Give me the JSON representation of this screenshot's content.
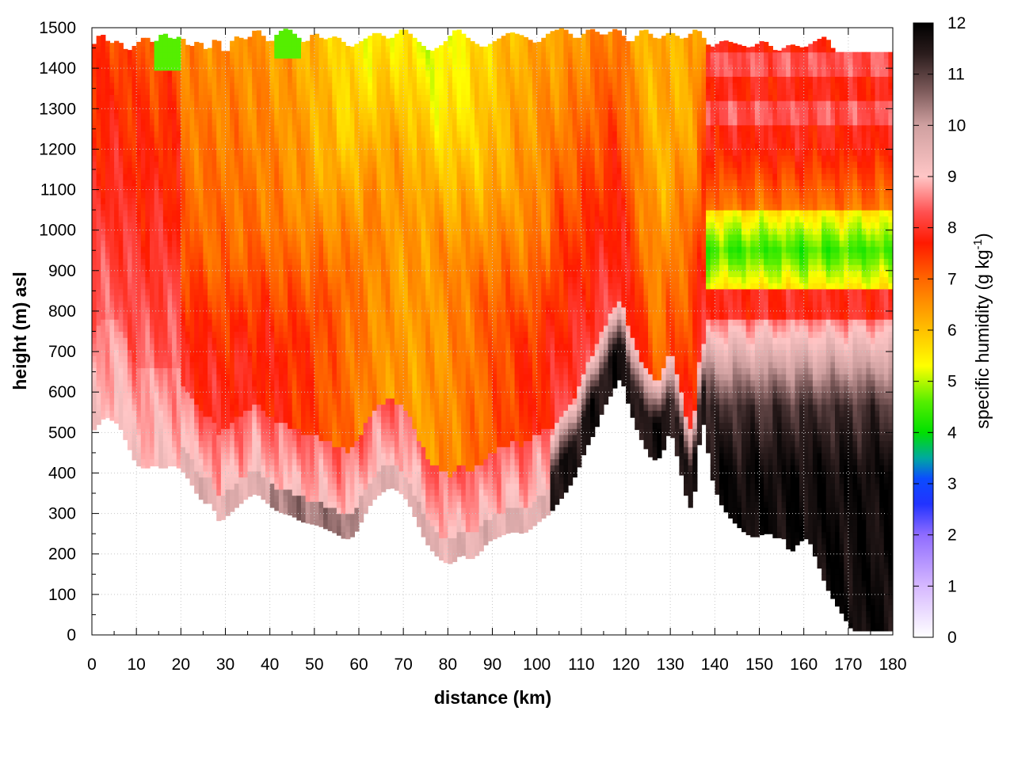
{
  "chart_data": {
    "type": "heatmap",
    "title": "",
    "xlabel": "distance (km)",
    "ylabel": "height (m) asl",
    "xlim": [
      0,
      180
    ],
    "ylim": [
      0,
      1500
    ],
    "x_ticks": [
      "0",
      "10",
      "20",
      "30",
      "40",
      "50",
      "60",
      "70",
      "80",
      "90",
      "100",
      "110",
      "120",
      "130",
      "140",
      "150",
      "160",
      "170",
      "180"
    ],
    "y_ticks": [
      "0",
      "100",
      "200",
      "300",
      "400",
      "500",
      "600",
      "700",
      "800",
      "900",
      "1000",
      "1100",
      "1200",
      "1300",
      "1400",
      "1500"
    ],
    "grid": true,
    "colorbar": {
      "label_main": "specific humidity (g kg",
      "label_sup": "-1",
      "label_end": ")",
      "range": [
        0,
        12
      ],
      "ticks": [
        "0",
        "1",
        "2",
        "3",
        "4",
        "5",
        "6",
        "7",
        "8",
        "9",
        "10",
        "11",
        "12"
      ],
      "stops": [
        {
          "v": 0,
          "c": "#ffffff"
        },
        {
          "v": 1,
          "c": "#d6b8ff"
        },
        {
          "v": 2,
          "c": "#8f6cff"
        },
        {
          "v": 2.6,
          "c": "#2233ff"
        },
        {
          "v": 3.1,
          "c": "#0b4cff"
        },
        {
          "v": 3.5,
          "c": "#00a8a0"
        },
        {
          "v": 4,
          "c": "#00e000"
        },
        {
          "v": 4.6,
          "c": "#55ee00"
        },
        {
          "v": 5.3,
          "c": "#ffff00"
        },
        {
          "v": 6,
          "c": "#ffc000"
        },
        {
          "v": 7,
          "c": "#ff6600"
        },
        {
          "v": 7.7,
          "c": "#ff1a00"
        },
        {
          "v": 8.3,
          "c": "#ff5050"
        },
        {
          "v": 9,
          "c": "#ffc6c6"
        },
        {
          "v": 10,
          "c": "#cfa0a0"
        },
        {
          "v": 10.7,
          "c": "#7a5858"
        },
        {
          "v": 11.4,
          "c": "#2a1c1c"
        },
        {
          "v": 12,
          "c": "#000000"
        }
      ]
    },
    "terrain_bottom_m": [
      [
        0,
        500
      ],
      [
        3,
        540
      ],
      [
        6,
        520
      ],
      [
        8,
        470
      ],
      [
        10,
        420
      ],
      [
        12,
        410
      ],
      [
        14,
        420
      ],
      [
        16,
        410
      ],
      [
        18,
        420
      ],
      [
        20,
        410
      ],
      [
        22,
        380
      ],
      [
        24,
        340
      ],
      [
        26,
        320
      ],
      [
        27,
        330
      ],
      [
        28,
        285
      ],
      [
        29,
        280
      ],
      [
        31,
        300
      ],
      [
        33,
        320
      ],
      [
        35,
        340
      ],
      [
        37,
        350
      ],
      [
        39,
        330
      ],
      [
        41,
        310
      ],
      [
        43,
        300
      ],
      [
        45,
        295
      ],
      [
        47,
        280
      ],
      [
        49,
        275
      ],
      [
        51,
        270
      ],
      [
        53,
        260
      ],
      [
        55,
        250
      ],
      [
        57,
        235
      ],
      [
        59,
        245
      ],
      [
        61,
        290
      ],
      [
        63,
        330
      ],
      [
        65,
        350
      ],
      [
        67,
        365
      ],
      [
        69,
        355
      ],
      [
        71,
        330
      ],
      [
        73,
        280
      ],
      [
        75,
        230
      ],
      [
        77,
        200
      ],
      [
        79,
        180
      ],
      [
        81,
        175
      ],
      [
        83,
        200
      ],
      [
        85,
        185
      ],
      [
        87,
        200
      ],
      [
        89,
        230
      ],
      [
        91,
        240
      ],
      [
        93,
        250
      ],
      [
        95,
        255
      ],
      [
        97,
        250
      ],
      [
        99,
        265
      ],
      [
        101,
        285
      ],
      [
        103,
        300
      ],
      [
        105,
        330
      ],
      [
        107,
        360
      ],
      [
        109,
        400
      ],
      [
        111,
        460
      ],
      [
        113,
        500
      ],
      [
        115,
        560
      ],
      [
        117,
        600
      ],
      [
        119,
        640
      ],
      [
        120,
        590
      ],
      [
        122,
        520
      ],
      [
        124,
        470
      ],
      [
        126,
        430
      ],
      [
        128,
        440
      ],
      [
        130,
        510
      ],
      [
        132,
        420
      ],
      [
        134,
        320
      ],
      [
        135,
        310
      ],
      [
        136,
        400
      ],
      [
        137,
        540
      ],
      [
        138,
        500
      ],
      [
        139,
        400
      ],
      [
        141,
        330
      ],
      [
        143,
        295
      ],
      [
        145,
        270
      ],
      [
        147,
        250
      ],
      [
        149,
        240
      ],
      [
        151,
        250
      ],
      [
        153,
        250
      ],
      [
        154,
        230
      ],
      [
        155,
        250
      ],
      [
        157,
        200
      ],
      [
        159,
        230
      ],
      [
        161,
        240
      ],
      [
        163,
        180
      ],
      [
        165,
        120
      ],
      [
        167,
        80
      ],
      [
        169,
        45
      ],
      [
        170,
        25
      ],
      [
        171,
        10
      ],
      [
        180,
        10
      ]
    ],
    "top_boundary_m": [
      [
        0,
        1450
      ],
      [
        2,
        1490
      ],
      [
        4,
        1460
      ],
      [
        6,
        1470
      ],
      [
        8,
        1440
      ],
      [
        10,
        1460
      ],
      [
        12,
        1480
      ],
      [
        14,
        1460
      ],
      [
        16,
        1490
      ],
      [
        18,
        1470
      ],
      [
        20,
        1480
      ],
      [
        22,
        1450
      ],
      [
        24,
        1470
      ],
      [
        26,
        1440
      ],
      [
        28,
        1480
      ],
      [
        30,
        1430
      ],
      [
        32,
        1480
      ],
      [
        35,
        1470
      ],
      [
        37,
        1500
      ],
      [
        40,
        1460
      ],
      [
        42,
        1490
      ],
      [
        44,
        1500
      ],
      [
        46,
        1480
      ],
      [
        48,
        1460
      ],
      [
        50,
        1490
      ],
      [
        52,
        1470
      ],
      [
        55,
        1480
      ],
      [
        58,
        1450
      ],
      [
        61,
        1470
      ],
      [
        64,
        1490
      ],
      [
        67,
        1470
      ],
      [
        70,
        1500
      ],
      [
        73,
        1470
      ],
      [
        76,
        1440
      ],
      [
        79,
        1460
      ],
      [
        82,
        1500
      ],
      [
        85,
        1470
      ],
      [
        88,
        1450
      ],
      [
        91,
        1470
      ],
      [
        94,
        1490
      ],
      [
        97,
        1480
      ],
      [
        100,
        1460
      ],
      [
        103,
        1490
      ],
      [
        106,
        1500
      ],
      [
        109,
        1470
      ],
      [
        112,
        1500
      ],
      [
        115,
        1480
      ],
      [
        118,
        1500
      ],
      [
        121,
        1460
      ],
      [
        124,
        1500
      ],
      [
        127,
        1470
      ],
      [
        130,
        1490
      ],
      [
        133,
        1470
      ],
      [
        136,
        1500
      ],
      [
        139,
        1450
      ],
      [
        142,
        1470
      ],
      [
        145,
        1460
      ],
      [
        148,
        1450
      ],
      [
        151,
        1470
      ],
      [
        154,
        1440
      ],
      [
        157,
        1460
      ],
      [
        160,
        1450
      ],
      [
        163,
        1470
      ],
      [
        165,
        1480
      ],
      [
        166,
        1460
      ],
      [
        167,
        1440
      ],
      [
        180,
        1440
      ]
    ]
  }
}
